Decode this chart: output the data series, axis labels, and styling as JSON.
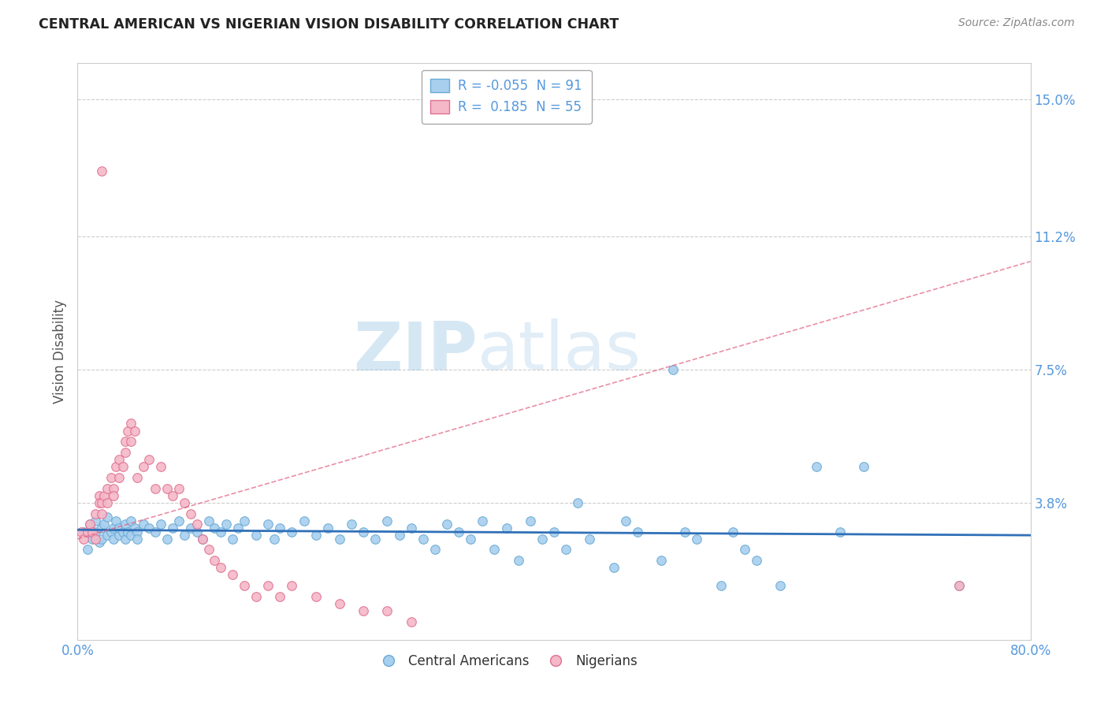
{
  "title": "CENTRAL AMERICAN VS NIGERIAN VISION DISABILITY CORRELATION CHART",
  "source": "Source: ZipAtlas.com",
  "ylabel": "Vision Disability",
  "xlim": [
    0.0,
    0.8
  ],
  "ylim": [
    0.0,
    0.16
  ],
  "yticks": [
    0.0,
    0.038,
    0.075,
    0.112,
    0.15
  ],
  "ytick_labels": [
    "",
    "3.8%",
    "7.5%",
    "11.2%",
    "15.0%"
  ],
  "xticks": [
    0.0,
    0.8
  ],
  "xtick_labels": [
    "0.0%",
    "80.0%"
  ],
  "legend_R1": "-0.055",
  "legend_N1": "91",
  "legend_R2": " 0.185",
  "legend_N2": "55",
  "color_blue": "#A8CFEE",
  "color_pink": "#F4B8C8",
  "edge_blue": "#6AAAD4",
  "edge_pink": "#E07090",
  "trend_blue": "#3070B8",
  "trend_pink": "#E06080",
  "bg_color": "#FFFFFF",
  "watermark_color": "#C8DFF0",
  "grid_color": "#CCCCCC",
  "title_color": "#222222",
  "ylabel_color": "#555555",
  "tick_color": "#5599DD",
  "blue_scatter_x": [
    0.005,
    0.008,
    0.01,
    0.012,
    0.015,
    0.015,
    0.018,
    0.02,
    0.02,
    0.022,
    0.025,
    0.025,
    0.028,
    0.03,
    0.03,
    0.032,
    0.035,
    0.035,
    0.038,
    0.04,
    0.04,
    0.042,
    0.045,
    0.045,
    0.048,
    0.05,
    0.05,
    0.055,
    0.06,
    0.065,
    0.07,
    0.075,
    0.08,
    0.085,
    0.09,
    0.095,
    0.1,
    0.105,
    0.11,
    0.115,
    0.12,
    0.125,
    0.13,
    0.135,
    0.14,
    0.15,
    0.16,
    0.165,
    0.17,
    0.18,
    0.19,
    0.2,
    0.21,
    0.22,
    0.23,
    0.24,
    0.25,
    0.26,
    0.27,
    0.28,
    0.29,
    0.3,
    0.31,
    0.32,
    0.33,
    0.34,
    0.35,
    0.36,
    0.37,
    0.38,
    0.39,
    0.4,
    0.41,
    0.42,
    0.43,
    0.45,
    0.46,
    0.47,
    0.49,
    0.5,
    0.51,
    0.52,
    0.54,
    0.55,
    0.56,
    0.57,
    0.59,
    0.62,
    0.64,
    0.66,
    0.74
  ],
  "blue_scatter_y": [
    0.03,
    0.025,
    0.032,
    0.028,
    0.033,
    0.03,
    0.027,
    0.031,
    0.028,
    0.032,
    0.029,
    0.034,
    0.03,
    0.031,
    0.028,
    0.033,
    0.029,
    0.031,
    0.03,
    0.032,
    0.028,
    0.03,
    0.033,
    0.029,
    0.031,
    0.03,
    0.028,
    0.032,
    0.031,
    0.03,
    0.032,
    0.028,
    0.031,
    0.033,
    0.029,
    0.031,
    0.03,
    0.028,
    0.033,
    0.031,
    0.03,
    0.032,
    0.028,
    0.031,
    0.033,
    0.029,
    0.032,
    0.028,
    0.031,
    0.03,
    0.033,
    0.029,
    0.031,
    0.028,
    0.032,
    0.03,
    0.028,
    0.033,
    0.029,
    0.031,
    0.028,
    0.025,
    0.032,
    0.03,
    0.028,
    0.033,
    0.025,
    0.031,
    0.022,
    0.033,
    0.028,
    0.03,
    0.025,
    0.038,
    0.028,
    0.02,
    0.033,
    0.03,
    0.022,
    0.075,
    0.03,
    0.028,
    0.015,
    0.03,
    0.025,
    0.022,
    0.015,
    0.048,
    0.03,
    0.048,
    0.015
  ],
  "pink_scatter_x": [
    0.003,
    0.005,
    0.008,
    0.01,
    0.012,
    0.015,
    0.015,
    0.018,
    0.018,
    0.02,
    0.02,
    0.022,
    0.025,
    0.025,
    0.028,
    0.03,
    0.03,
    0.032,
    0.035,
    0.035,
    0.038,
    0.04,
    0.04,
    0.042,
    0.045,
    0.045,
    0.048,
    0.05,
    0.055,
    0.06,
    0.065,
    0.07,
    0.075,
    0.08,
    0.085,
    0.09,
    0.095,
    0.1,
    0.105,
    0.11,
    0.115,
    0.12,
    0.13,
    0.14,
    0.15,
    0.16,
    0.17,
    0.18,
    0.2,
    0.22,
    0.24,
    0.26,
    0.28,
    0.02,
    0.74
  ],
  "pink_scatter_y": [
    0.03,
    0.028,
    0.03,
    0.032,
    0.03,
    0.035,
    0.028,
    0.04,
    0.038,
    0.038,
    0.035,
    0.04,
    0.042,
    0.038,
    0.045,
    0.042,
    0.04,
    0.048,
    0.045,
    0.05,
    0.048,
    0.055,
    0.052,
    0.058,
    0.06,
    0.055,
    0.058,
    0.045,
    0.048,
    0.05,
    0.042,
    0.048,
    0.042,
    0.04,
    0.042,
    0.038,
    0.035,
    0.032,
    0.028,
    0.025,
    0.022,
    0.02,
    0.018,
    0.015,
    0.012,
    0.015,
    0.012,
    0.015,
    0.012,
    0.01,
    0.008,
    0.008,
    0.005,
    0.13,
    0.015
  ],
  "blue_trend_x0": 0.0,
  "blue_trend_y0": 0.0305,
  "blue_trend_x1": 0.8,
  "blue_trend_y1": 0.029,
  "pink_trend_x0": 0.0,
  "pink_trend_y0": 0.028,
  "pink_trend_x1": 0.8,
  "pink_trend_y1": 0.105
}
